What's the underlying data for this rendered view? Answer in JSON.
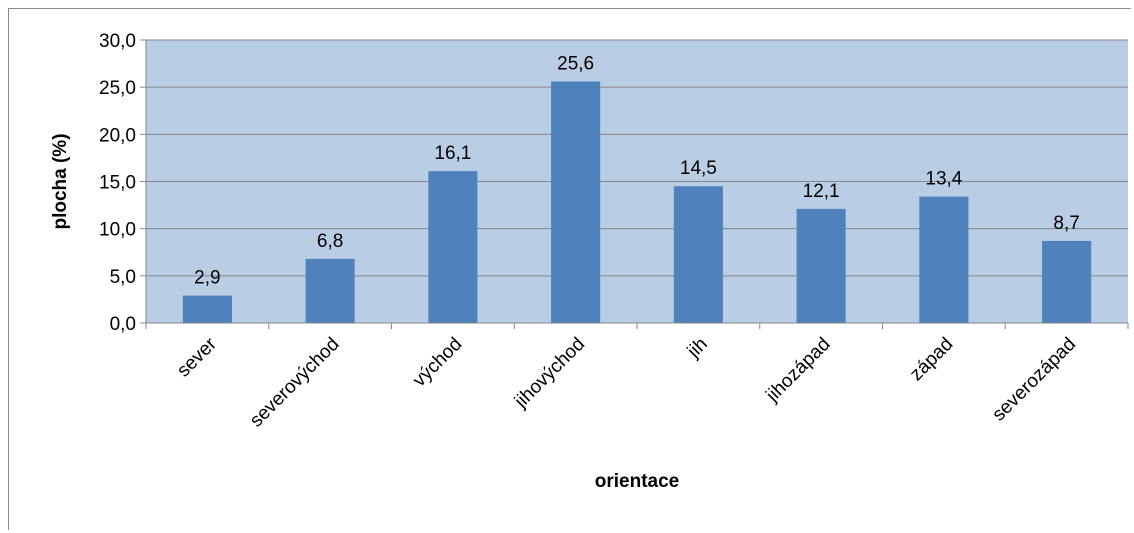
{
  "chart_data": {
    "type": "bar",
    "categories": [
      "sever",
      "severovýchod",
      "východ",
      "jihovýchod",
      "jih",
      "jihozápad",
      "západ",
      "severozápad"
    ],
    "values": [
      2.9,
      6.8,
      16.1,
      25.6,
      14.5,
      12.1,
      13.4,
      8.7
    ],
    "data_labels": [
      "2,9",
      "6,8",
      "16,1",
      "25,6",
      "14,5",
      "12,1",
      "13,4",
      "8,7"
    ],
    "title": "",
    "xlabel": "orientace",
    "ylabel": "plocha (%)",
    "ylim": [
      0,
      30
    ],
    "yticks": [
      0,
      5,
      10,
      15,
      20,
      25,
      30
    ],
    "ytick_labels": [
      "0,0",
      "5,0",
      "10,0",
      "15,0",
      "20,0",
      "25,0",
      "30,0"
    ],
    "grid": true,
    "legend": "none",
    "colors": {
      "bar": "#4f81bd",
      "plot_area": "#b9cde5",
      "gridline": "#868686"
    }
  }
}
